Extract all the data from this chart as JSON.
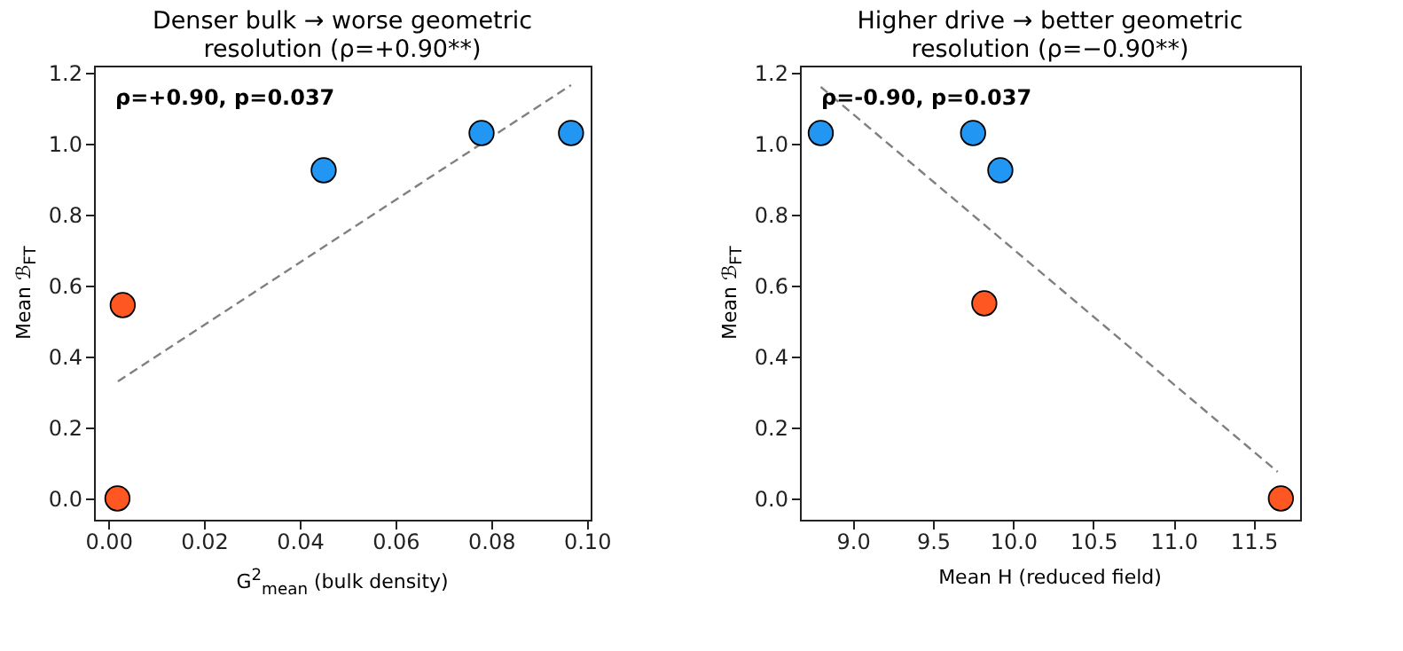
{
  "chart_data": [
    {
      "type": "scatter",
      "title": "Denser bulk → worse geometric resolution (ρ=+0.90**)",
      "xlabel": "G$^{2}$$_{mean}$ (bulk density)",
      "ylabel": "Mean ℬ$_{FT}$",
      "annotations": [
        "ρ=+0.90, p=0.037"
      ],
      "marker": "circle",
      "xlim": [
        -0.003,
        0.1008
      ],
      "ylim": [
        -0.06,
        1.22
      ],
      "xticks": [
        {
          "value": 0,
          "label": "0.00"
        },
        {
          "value": 0.02,
          "label": "0.02"
        },
        {
          "value": 0.04,
          "label": "0.04"
        },
        {
          "value": 0.06,
          "label": "0.06"
        },
        {
          "value": 0.08,
          "label": "0.08"
        },
        {
          "value": 0.1,
          "label": "0.10"
        }
      ],
      "yticks": [
        {
          "value": 0,
          "label": "0.0"
        },
        {
          "value": 0.2,
          "label": "0.2"
        },
        {
          "value": 0.4,
          "label": "0.4"
        },
        {
          "value": 0.6,
          "label": "0.6"
        },
        {
          "value": 0.8,
          "label": "0.8"
        },
        {
          "value": 1,
          "label": "1.0"
        },
        {
          "value": 1.2,
          "label": "1.2"
        }
      ],
      "series": [
        {
          "type": "line",
          "color": "#808080",
          "line_style": "dashed",
          "marker": "none",
          "x": [
            0.002,
            0.0967
          ],
          "values": [
            0.33,
            1.165
          ]
        },
        {
          "color": "#ff5722",
          "x": [
            0.0019,
            0.003
          ],
          "values": [
            0.0,
            0.545
          ]
        },
        {
          "color": "#2196f3",
          "x": [
            0.045,
            0.078,
            0.0967
          ],
          "values": [
            0.925,
            1.03,
            1.03
          ]
        }
      ]
    },
    {
      "type": "scatter",
      "title": "Higher drive → better geometric resolution (ρ=−0.90**)",
      "xlabel": "Mean H (reduced field)",
      "ylabel": "Mean ℬ$_{FT}$",
      "annotations": [
        "ρ=-0.90, p=0.037"
      ],
      "marker": "circle",
      "xlim": [
        8.67,
        11.79
      ],
      "ylim": [
        -0.06,
        1.22
      ],
      "xticks": [
        {
          "value": 9,
          "label": "9.0"
        },
        {
          "value": 9.5,
          "label": "9.5"
        },
        {
          "value": 10,
          "label": "10.0"
        },
        {
          "value": 10.5,
          "label": "10.5"
        },
        {
          "value": 11,
          "label": "11.0"
        },
        {
          "value": 11.5,
          "label": "11.5"
        }
      ],
      "yticks": [
        {
          "value": 0,
          "label": "0.0"
        },
        {
          "value": 0.2,
          "label": "0.2"
        },
        {
          "value": 0.4,
          "label": "0.4"
        },
        {
          "value": 0.6,
          "label": "0.6"
        },
        {
          "value": 0.8,
          "label": "0.8"
        },
        {
          "value": 1,
          "label": "1.0"
        },
        {
          "value": 1.2,
          "label": "1.2"
        }
      ],
      "series": [
        {
          "type": "line",
          "color": "#808080",
          "line_style": "dashed",
          "marker": "none",
          "x": [
            8.8,
            11.65
          ],
          "values": [
            1.16,
            0.075
          ]
        },
        {
          "color": "#ff5722",
          "x": [
            9.82,
            11.67
          ],
          "values": [
            0.55,
            0.0
          ]
        },
        {
          "color": "#2196f3",
          "x": [
            8.8,
            9.75,
            9.92
          ],
          "values": [
            1.03,
            1.03,
            0.925
          ]
        }
      ]
    }
  ]
}
